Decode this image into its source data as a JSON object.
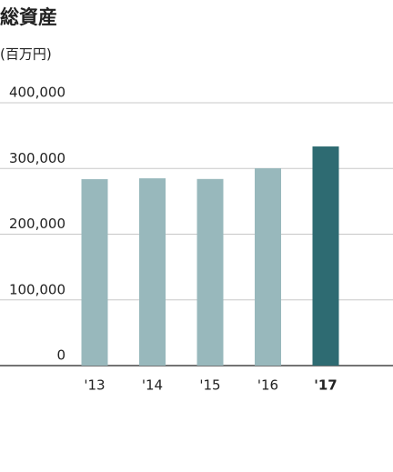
{
  "chart_data": {
    "type": "bar",
    "title": "総資産",
    "subtitle": "(百万円)",
    "categories": [
      "'13",
      "'14",
      "'15",
      "'16",
      "'17"
    ],
    "values": [
      283700,
      285000,
      284000,
      300300,
      333500
    ],
    "colors": [
      "#98b8bc",
      "#98b8bc",
      "#98b8bc",
      "#98b8bc",
      "#2e6b72"
    ],
    "highlight_color": "#2e6b72",
    "ylim": [
      0,
      400000
    ],
    "yticks": [
      0,
      {
        "value": 100000,
        "label": "100,000"
      },
      {
        "value": 200000,
        "label": "200,000"
      },
      {
        "value": 300000,
        "label": "300,000"
      },
      {
        "value": 400000,
        "label": "400,000"
      }
    ],
    "grid": true
  }
}
